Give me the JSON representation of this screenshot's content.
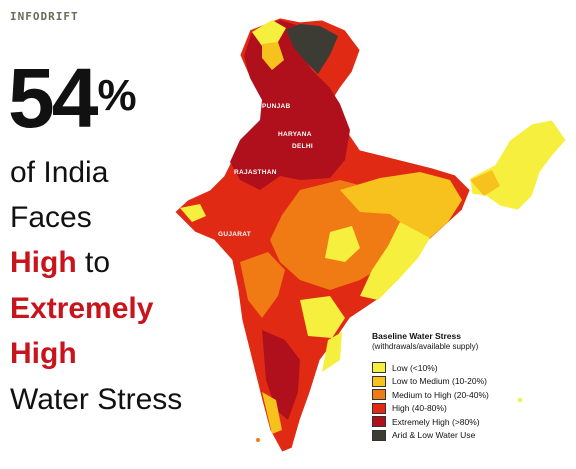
{
  "brand": "INFODRIFT",
  "headline": {
    "number": "54",
    "percent_sign": "%",
    "line1": "of India",
    "line2": "Faces",
    "line3_red": "High",
    "line3_rest": " to",
    "line4_red": "Extremely",
    "line5_red": "High",
    "line6": "Water Stress"
  },
  "map": {
    "state_labels": {
      "punjab": "PUNJAB",
      "haryana": "HARYANA",
      "delhi": "DELHI",
      "rajasthan": "RAJASTHAN",
      "gujarat": "GUJARAT"
    }
  },
  "legend": {
    "title": "Baseline Water Stress",
    "subtitle": "(withdrawals/available supply)",
    "items": [
      {
        "label": "Low (<10%)",
        "color": "#f7ef3e"
      },
      {
        "label": "Low to Medium (10-20%)",
        "color": "#f7c21e"
      },
      {
        "label": "Medium to High (20-40%)",
        "color": "#f07a14"
      },
      {
        "label": "High (40-80%)",
        "color": "#e02a14"
      },
      {
        "label": "Extremely High (>80%)",
        "color": "#b0101c"
      },
      {
        "label": "Arid & Low Water Use",
        "color": "#3c3c34"
      }
    ]
  },
  "colors": {
    "red_text": "#c8141c",
    "base_map": "#e02a14",
    "northeast": "#f7ef3e"
  }
}
